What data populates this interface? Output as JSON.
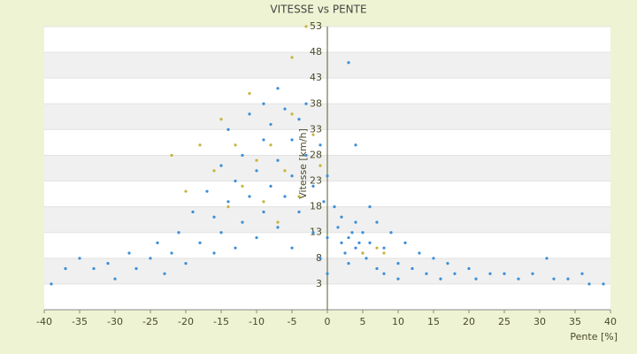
{
  "chart_data": {
    "type": "scatter",
    "title": "VITESSE vs PENTE",
    "x_label": "Pente [%]",
    "y_label": "Vitesse [km/h]",
    "xlim": [
      -40,
      40
    ],
    "xticks": [
      -40,
      -35,
      -30,
      -25,
      -20,
      -15,
      -10,
      -5,
      0,
      5,
      10,
      15,
      20,
      25,
      30,
      35,
      40
    ],
    "ylim": [
      -2,
      53
    ],
    "yticks": [
      3,
      8,
      13,
      18,
      23,
      28,
      33,
      38,
      43,
      48,
      53
    ],
    "grid": true,
    "series": [
      {
        "color": "#3b8ed6",
        "x": [
          -39,
          -37,
          -35,
          -33,
          -31,
          -30,
          -28,
          -27,
          -25,
          -24,
          -23,
          -22,
          -21,
          -20,
          -19,
          -18,
          -17,
          -16,
          -16,
          -15,
          -15,
          -14,
          -14,
          -13,
          -13,
          -12,
          -12,
          -11,
          -11,
          -10,
          -10,
          -9,
          -9,
          -9,
          -8,
          -8,
          -7,
          -7,
          -7,
          -6,
          -6,
          -5,
          -5,
          -5,
          -4,
          -4,
          -3,
          -3,
          -2,
          -2,
          -1,
          -1,
          -0.5,
          0,
          0,
          0,
          1,
          1.5,
          2,
          2,
          2.5,
          3,
          3,
          3,
          3.5,
          4,
          4,
          4,
          4.5,
          5,
          5,
          5.5,
          6,
          6,
          7,
          7,
          8,
          8,
          9,
          10,
          10,
          11,
          12,
          13,
          14,
          15,
          16,
          17,
          18,
          20,
          21,
          23,
          25,
          27,
          29,
          31,
          32,
          34,
          36,
          37,
          39
        ],
        "y": [
          3,
          6,
          8,
          6,
          7,
          4,
          9,
          6,
          8,
          11,
          5,
          9,
          13,
          7,
          17,
          11,
          21,
          9,
          16,
          26,
          13,
          19,
          33,
          10,
          23,
          28,
          15,
          36,
          20,
          25,
          12,
          31,
          38,
          17,
          22,
          34,
          41,
          27,
          14,
          37,
          20,
          31,
          24,
          10,
          35,
          17,
          28,
          38,
          22,
          13,
          30,
          8,
          19,
          5,
          12,
          24,
          18,
          14,
          11,
          16,
          9,
          12,
          46,
          7,
          13,
          10,
          30,
          15,
          11,
          9,
          13,
          8,
          18,
          11,
          6,
          15,
          10,
          5,
          13,
          7,
          4,
          11,
          6,
          9,
          5,
          8,
          4,
          7,
          5,
          6,
          4,
          5,
          5,
          4,
          5,
          8,
          4,
          4,
          5,
          3,
          3
        ]
      },
      {
        "color": "#c8b43a",
        "x": [
          -22,
          -20,
          -18,
          -16,
          -15,
          -14,
          -13,
          -12,
          -11,
          -10,
          -9,
          -8,
          -7,
          -6,
          -5,
          -5,
          -4,
          -3,
          -2,
          -1,
          5,
          7,
          8
        ],
        "y": [
          28,
          21,
          30,
          25,
          35,
          18,
          30,
          22,
          40,
          27,
          19,
          30,
          15,
          25,
          47,
          36,
          20,
          53,
          32,
          26,
          9,
          10,
          9
        ]
      }
    ]
  }
}
